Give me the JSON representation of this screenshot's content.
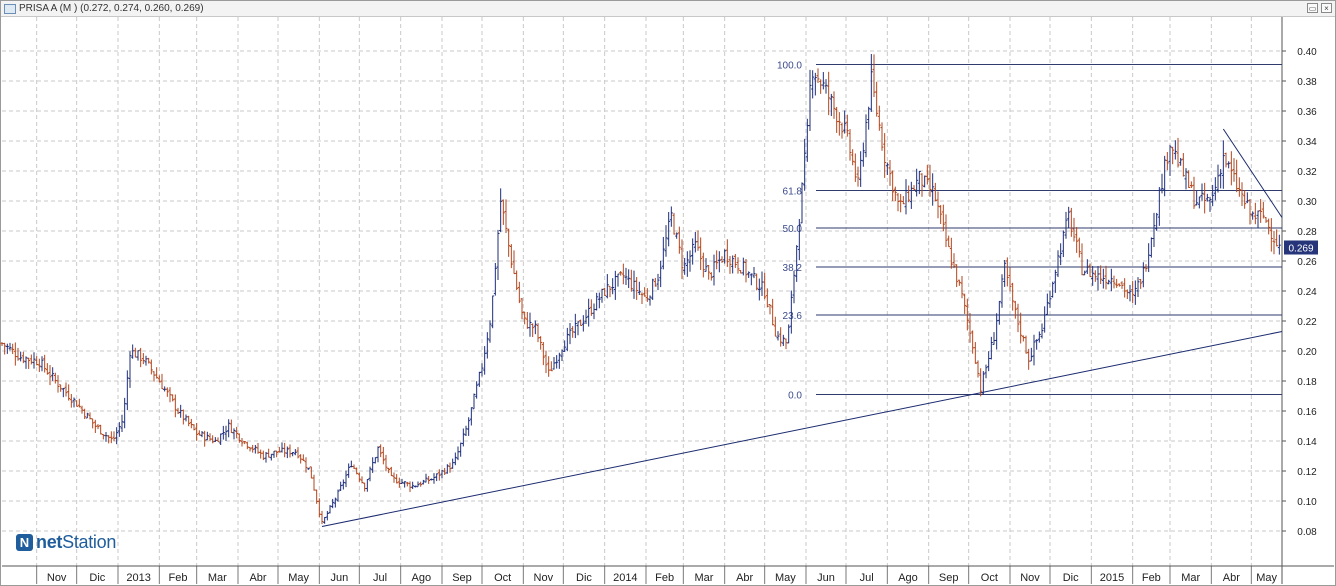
{
  "window": {
    "title": "PRISA A (M ) (0.272, 0.274, 0.260, 0.269)",
    "restore_icon": "restore-icon",
    "close_icon": "close-icon"
  },
  "logo": {
    "mark": "N",
    "text_bold": "net",
    "text_rest": "Station"
  },
  "chart_data": {
    "type": "ohlc",
    "symbol": "PRISA A",
    "last_price": "0.269",
    "ylim": [
      0.06,
      0.41
    ],
    "yticks": [
      "0.40",
      "0.38",
      "0.36",
      "0.34",
      "0.32",
      "0.30",
      "0.28",
      "0.26",
      "0.24",
      "0.22",
      "0.20",
      "0.18",
      "0.16",
      "0.14",
      "0.12",
      "0.10",
      "0.08"
    ],
    "ytick_values": [
      0.4,
      0.38,
      0.36,
      0.34,
      0.32,
      0.3,
      0.28,
      0.26,
      0.24,
      0.22,
      0.2,
      0.18,
      0.16,
      0.14,
      0.12,
      0.1,
      0.08
    ],
    "xlim": [
      "2012-10-06",
      "2015-05-24"
    ],
    "x_months": [
      {
        "label": "Nov",
        "date": "2012-11-01"
      },
      {
        "label": "Dic",
        "date": "2012-12-01"
      },
      {
        "label": "2013",
        "date": "2013-01-01"
      },
      {
        "label": "Feb",
        "date": "2013-02-01"
      },
      {
        "label": "Mar",
        "date": "2013-03-01"
      },
      {
        "label": "Abr",
        "date": "2013-04-01"
      },
      {
        "label": "May",
        "date": "2013-05-01"
      },
      {
        "label": "Jun",
        "date": "2013-06-01"
      },
      {
        "label": "Jul",
        "date": "2013-07-01"
      },
      {
        "label": "Ago",
        "date": "2013-08-01"
      },
      {
        "label": "Sep",
        "date": "2013-09-01"
      },
      {
        "label": "Oct",
        "date": "2013-10-01"
      },
      {
        "label": "Nov",
        "date": "2013-11-01"
      },
      {
        "label": "Dic",
        "date": "2013-12-01"
      },
      {
        "label": "2014",
        "date": "2014-01-01"
      },
      {
        "label": "Feb",
        "date": "2014-02-01"
      },
      {
        "label": "Mar",
        "date": "2014-03-01"
      },
      {
        "label": "Abr",
        "date": "2014-04-01"
      },
      {
        "label": "May",
        "date": "2014-05-01"
      },
      {
        "label": "Jun",
        "date": "2014-06-01"
      },
      {
        "label": "Jul",
        "date": "2014-07-01"
      },
      {
        "label": "Ago",
        "date": "2014-08-01"
      },
      {
        "label": "Sep",
        "date": "2014-09-01"
      },
      {
        "label": "Oct",
        "date": "2014-10-01"
      },
      {
        "label": "Nov",
        "date": "2014-11-01"
      },
      {
        "label": "Dic",
        "date": "2014-12-01"
      },
      {
        "label": "2015",
        "date": "2015-01-01"
      },
      {
        "label": "Feb",
        "date": "2015-02-01"
      },
      {
        "label": "Mar",
        "date": "2015-03-01"
      },
      {
        "label": "Abr",
        "date": "2015-04-01"
      },
      {
        "label": "May",
        "date": "2015-05-01"
      }
    ],
    "price_path": [
      [
        "2012-10-06",
        0.205
      ],
      [
        "2012-10-20",
        0.196
      ],
      [
        "2012-11-03",
        0.193
      ],
      [
        "2012-11-15",
        0.18
      ],
      [
        "2012-12-01",
        0.165
      ],
      [
        "2012-12-15",
        0.15
      ],
      [
        "2012-12-28",
        0.14
      ],
      [
        "2013-01-05",
        0.155
      ],
      [
        "2013-01-10",
        0.2
      ],
      [
        "2013-01-20",
        0.195
      ],
      [
        "2013-02-01",
        0.18
      ],
      [
        "2013-02-15",
        0.16
      ],
      [
        "2013-03-01",
        0.145
      ],
      [
        "2013-03-15",
        0.14
      ],
      [
        "2013-03-25",
        0.15
      ],
      [
        "2013-04-05",
        0.14
      ],
      [
        "2013-04-20",
        0.13
      ],
      [
        "2013-05-01",
        0.133
      ],
      [
        "2013-05-15",
        0.133
      ],
      [
        "2013-05-25",
        0.12
      ],
      [
        "2013-06-03",
        0.085
      ],
      [
        "2013-06-15",
        0.105
      ],
      [
        "2013-06-25",
        0.125
      ],
      [
        "2013-07-05",
        0.11
      ],
      [
        "2013-07-15",
        0.135
      ],
      [
        "2013-07-25",
        0.115
      ],
      [
        "2013-08-10",
        0.11
      ],
      [
        "2013-08-25",
        0.115
      ],
      [
        "2013-09-10",
        0.125
      ],
      [
        "2013-09-20",
        0.15
      ],
      [
        "2013-10-01",
        0.19
      ],
      [
        "2013-10-08",
        0.225
      ],
      [
        "2013-10-15",
        0.3
      ],
      [
        "2013-10-22",
        0.265
      ],
      [
        "2013-11-01",
        0.22
      ],
      [
        "2013-11-10",
        0.215
      ],
      [
        "2013-11-20",
        0.185
      ],
      [
        "2013-12-01",
        0.205
      ],
      [
        "2013-12-15",
        0.22
      ],
      [
        "2014-01-01",
        0.24
      ],
      [
        "2014-01-15",
        0.25
      ],
      [
        "2014-02-01",
        0.235
      ],
      [
        "2014-02-10",
        0.25
      ],
      [
        "2014-02-20",
        0.29
      ],
      [
        "2014-03-01",
        0.255
      ],
      [
        "2014-03-10",
        0.27
      ],
      [
        "2014-03-20",
        0.25
      ],
      [
        "2014-04-01",
        0.265
      ],
      [
        "2014-04-15",
        0.255
      ],
      [
        "2014-05-01",
        0.24
      ],
      [
        "2014-05-10",
        0.21
      ],
      [
        "2014-05-18",
        0.205
      ],
      [
        "2014-06-02",
        0.345
      ],
      [
        "2014-06-05",
        0.39
      ],
      [
        "2014-06-15",
        0.375
      ],
      [
        "2014-07-01",
        0.345
      ],
      [
        "2014-07-10",
        0.31
      ],
      [
        "2014-07-20",
        0.38
      ],
      [
        "2014-07-30",
        0.33
      ],
      [
        "2014-08-10",
        0.295
      ],
      [
        "2014-08-25",
        0.315
      ],
      [
        "2014-09-05",
        0.305
      ],
      [
        "2014-09-15",
        0.27
      ],
      [
        "2014-09-25",
        0.24
      ],
      [
        "2014-10-05",
        0.2
      ],
      [
        "2014-10-10",
        0.175
      ],
      [
        "2014-10-20",
        0.21
      ],
      [
        "2014-10-28",
        0.255
      ],
      [
        "2014-11-05",
        0.225
      ],
      [
        "2014-11-15",
        0.195
      ],
      [
        "2014-11-25",
        0.215
      ],
      [
        "2014-12-05",
        0.255
      ],
      [
        "2014-12-15",
        0.29
      ],
      [
        "2014-12-25",
        0.255
      ],
      [
        "2015-01-05",
        0.25
      ],
      [
        "2015-01-20",
        0.248
      ],
      [
        "2015-02-01",
        0.235
      ],
      [
        "2015-02-10",
        0.255
      ],
      [
        "2015-02-20",
        0.3
      ],
      [
        "2015-03-01",
        0.34
      ],
      [
        "2015-03-10",
        0.32
      ],
      [
        "2015-03-20",
        0.3
      ],
      [
        "2015-04-01",
        0.3
      ],
      [
        "2015-04-10",
        0.33
      ],
      [
        "2015-04-20",
        0.31
      ],
      [
        "2015-05-01",
        0.29
      ],
      [
        "2015-05-10",
        0.29
      ],
      [
        "2015-05-22",
        0.269
      ]
    ],
    "fibonacci": {
      "start": "2014-06-01",
      "end": "2015-05-24",
      "levels": [
        {
          "label": "100.0",
          "value": 0.391
        },
        {
          "label": "61.8",
          "value": 0.307
        },
        {
          "label": "50.0",
          "value": 0.282
        },
        {
          "label": "38.2",
          "value": 0.256
        },
        {
          "label": "23.6",
          "value": 0.224
        },
        {
          "label": "0.0",
          "value": 0.171
        }
      ]
    },
    "trendlines": [
      {
        "name": "support",
        "from": [
          "2013-06-03",
          0.083
        ],
        "to": [
          "2015-05-24",
          0.213
        ]
      },
      {
        "name": "resistance",
        "from": [
          "2015-04-10",
          0.348
        ],
        "to": [
          "2015-05-24",
          0.289
        ]
      }
    ],
    "colors": {
      "up": "#1c2e7a",
      "down": "#b0451c",
      "grid": "#c9c9c9",
      "fib": "#2f3a6e",
      "trend": "#1a2a6e",
      "price_box_bg": "#26357a",
      "axis_text": "#222222"
    }
  }
}
